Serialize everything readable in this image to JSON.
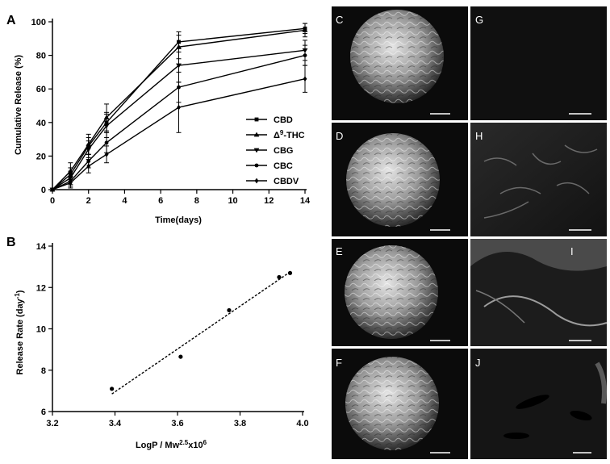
{
  "figure": {
    "panel_labels": [
      "A",
      "B"
    ],
    "sem_panels": [
      {
        "label": "C",
        "kind": "microsphere",
        "texture": "wrinkled"
      },
      {
        "label": "D",
        "kind": "microsphere",
        "texture": "wrinkled"
      },
      {
        "label": "E",
        "kind": "microsphere",
        "texture": "wrinkled"
      },
      {
        "label": "F",
        "kind": "microsphere",
        "texture": "wrinkled"
      },
      {
        "label": "G",
        "kind": "surface",
        "texture": "smooth"
      },
      {
        "label": "H",
        "kind": "surface",
        "texture": "fibrous"
      },
      {
        "label": "I",
        "kind": "surface",
        "texture": "folded"
      },
      {
        "label": "J",
        "kind": "surface",
        "texture": "pores"
      }
    ]
  },
  "chart_data": [
    {
      "panel": "A",
      "type": "line",
      "ylabel": "Cumulative Release (%)",
      "xlabel": "Time(days)",
      "xlim": [
        0,
        14
      ],
      "ylim": [
        0,
        100
      ],
      "xticks": [
        0,
        2,
        4,
        6,
        8,
        10,
        12,
        14
      ],
      "yticks": [
        0,
        20,
        40,
        60,
        80,
        100
      ],
      "legend_position": "right-middle",
      "x": [
        0,
        1,
        2,
        3,
        7,
        14
      ],
      "series": [
        {
          "name": "CBD",
          "marker": "square",
          "values": [
            0,
            9,
            26,
            40,
            88,
            96
          ],
          "errors": [
            0,
            4,
            5,
            6,
            6,
            3
          ]
        },
        {
          "name": "Δ⁹-THC",
          "name_base": "Δ",
          "name_sup": "9",
          "name_rest": "-THC",
          "marker": "triangle-up",
          "values": [
            0,
            11,
            27,
            43,
            85,
            95
          ],
          "errors": [
            0,
            5,
            6,
            8,
            7,
            4
          ]
        },
        {
          "name": "CBG",
          "marker": "triangle-down",
          "values": [
            0,
            7,
            24,
            38,
            74,
            83
          ],
          "errors": [
            0,
            4,
            5,
            7,
            10,
            6
          ]
        },
        {
          "name": "CBC",
          "marker": "circle",
          "values": [
            0,
            5,
            17,
            28,
            61,
            80
          ],
          "errors": [
            0,
            3,
            4,
            6,
            9,
            6
          ]
        },
        {
          "name": "CBDV",
          "marker": "diamond",
          "values": [
            0,
            4,
            14,
            21,
            49,
            66
          ],
          "errors": [
            0,
            3,
            4,
            5,
            15,
            8
          ]
        }
      ]
    },
    {
      "panel": "B",
      "type": "scatter",
      "ylabel_base": "Release Rate (day",
      "ylabel_sup": "-1",
      "ylabel_end": ")",
      "xlabel_base": "LogP / Mw",
      "xlabel_sup1": "2.5",
      "xlabel_mid": "x10",
      "xlabel_sup2": "6",
      "xlim": [
        3.2,
        4.0
      ],
      "ylim": [
        6,
        14
      ],
      "xticks": [
        3.2,
        3.4,
        3.6,
        3.8,
        4.0
      ],
      "xtick_labels": [
        "3.2",
        "3.4",
        "3.6",
        "3.8",
        "4.0"
      ],
      "yticks": [
        6,
        8,
        10,
        12,
        14
      ],
      "points": [
        {
          "x": 3.39,
          "y": 7.1
        },
        {
          "x": 3.61,
          "y": 8.65
        },
        {
          "x": 3.765,
          "y": 10.9
        },
        {
          "x": 3.925,
          "y": 12.5
        },
        {
          "x": 3.96,
          "y": 12.7
        }
      ],
      "fit_line": {
        "x": [
          3.39,
          3.96
        ],
        "y": [
          6.85,
          12.75
        ],
        "style": "dotted"
      }
    }
  ]
}
